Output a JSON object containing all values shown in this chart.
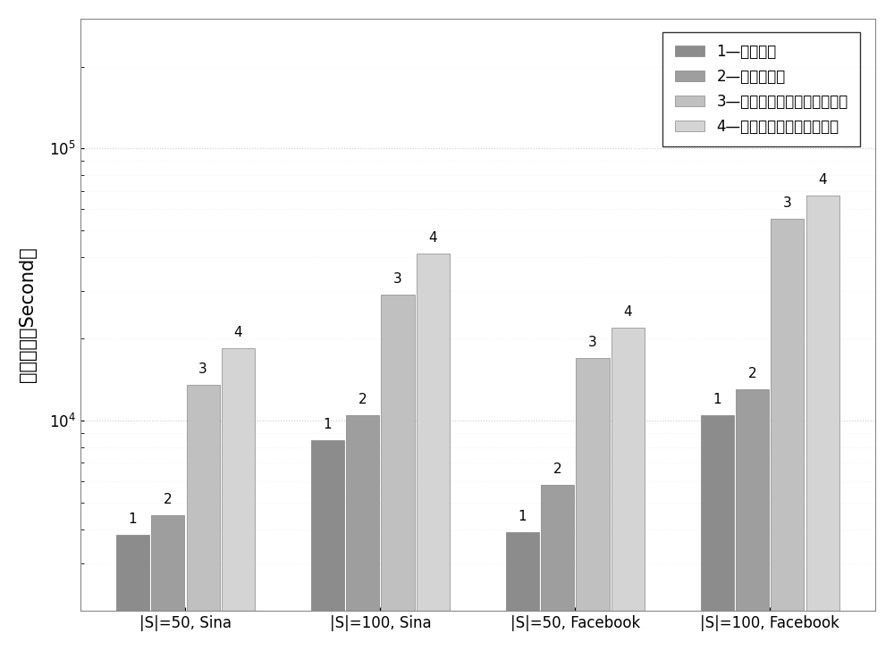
{
  "groups": [
    "|S|=50, Sina",
    "|S|=100, Sina",
    "|S|=50, Facebook",
    "|S|=100, Facebook"
  ],
  "series_labels": [
    "1—出度算法",
    "2—中心度算法",
    "3—基于话题模型的中心度算法",
    "4—基于话题模型的出度算法"
  ],
  "bar_labels": [
    "1",
    "2",
    "3",
    "4"
  ],
  "values": [
    [
      3800,
      4500,
      13500,
      18500
    ],
    [
      8500,
      10500,
      29000,
      41000
    ],
    [
      3900,
      5800,
      17000,
      22000
    ],
    [
      10500,
      13000,
      55000,
      67000
    ]
  ],
  "bar_colors_dark": [
    "#8a8a8a",
    "#8a8a8a",
    "#8a8a8a",
    "#8a8a8a"
  ],
  "bar_colors_light": [
    "#c8c8c8",
    "#c8c8c8",
    "#c8c8c8",
    "#c8c8c8"
  ],
  "bar_color_1": "#8c8c8c",
  "bar_color_2": "#9e9e9e",
  "bar_color_3": "#c0c0c0",
  "bar_color_4": "#d4d4d4",
  "ylabel": "运行时间（Second）",
  "ylim_log_min": 2000,
  "ylim_log_max": 300000,
  "yticks": [
    10000,
    100000
  ],
  "background_color": "#ffffff",
  "bar_width": 0.17,
  "legend_fontsize": 12,
  "ylabel_fontsize": 15,
  "tick_fontsize": 12,
  "label_fontsize": 11
}
